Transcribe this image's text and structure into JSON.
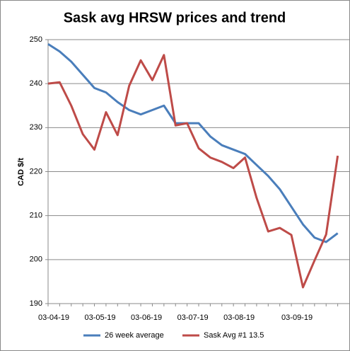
{
  "chart_data": {
    "type": "line",
    "title": "Sask avg HRSW prices and trend",
    "y_label": "CAD $/t",
    "categories": [
      "03-04-19",
      null,
      null,
      null,
      "03-05-19",
      null,
      null,
      null,
      "03-06-19",
      null,
      null,
      null,
      "03-07-19",
      null,
      null,
      null,
      "03-08-19",
      null,
      null,
      null,
      null,
      "03-09-19",
      null,
      null,
      null,
      null
    ],
    "series": [
      {
        "name": "26 week average",
        "color": "#4a7ebb",
        "values": [
          249,
          247.3,
          245,
          242,
          239,
          238,
          235.8,
          234,
          233,
          234,
          235,
          231,
          231,
          231,
          228,
          226,
          225,
          224,
          221.5,
          219,
          216,
          212,
          208,
          205,
          204,
          206
        ]
      },
      {
        "name": "Sask Avg #1 13.5",
        "color": "#be4b48",
        "values": [
          240,
          240.3,
          235,
          228.5,
          225,
          233.5,
          228.3,
          239.5,
          245.3,
          240.8,
          246.5,
          230.5,
          231,
          225.3,
          223.2,
          222.2,
          220.8,
          223.2,
          214,
          206.4,
          207.2,
          205.6,
          193.7,
          199.8,
          205.7,
          223.6
        ]
      }
    ],
    "ylim": [
      190,
      250
    ],
    "yticks": [
      190,
      200,
      210,
      220,
      230,
      240,
      250
    ],
    "grid": true,
    "legend": "bottom"
  }
}
